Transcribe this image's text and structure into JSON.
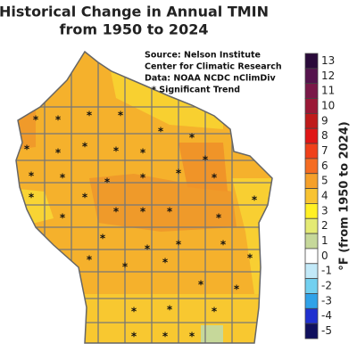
{
  "title": [
    "Historical Change in Annual TMIN",
    "from 1950 to 2024"
  ],
  "source": [
    "Source:  Nelson Institute",
    "Center for Climatic Research",
    "Data: NOAA NCDC nClimDiv",
    "* Significant Trend"
  ],
  "legend": {
    "label": "°F (from 1950 to 2024)",
    "ticks": [
      13,
      12,
      11,
      10,
      9,
      8,
      7,
      6,
      5,
      4,
      3,
      2,
      1,
      0,
      -1,
      -2,
      -3,
      -4,
      -5
    ],
    "colors": [
      "#2a0a3a",
      "#55134d",
      "#7a1848",
      "#9a1836",
      "#bf1a1a",
      "#e01616",
      "#f0401a",
      "#f56c22",
      "#f5a02a",
      "#f8c332",
      "#fff024",
      "#e4ea74",
      "#c6d89a",
      "#ffffff",
      "#c2e9f8",
      "#72d0f0",
      "#30a2e8",
      "#2030d0",
      "#10105e"
    ]
  }
}
